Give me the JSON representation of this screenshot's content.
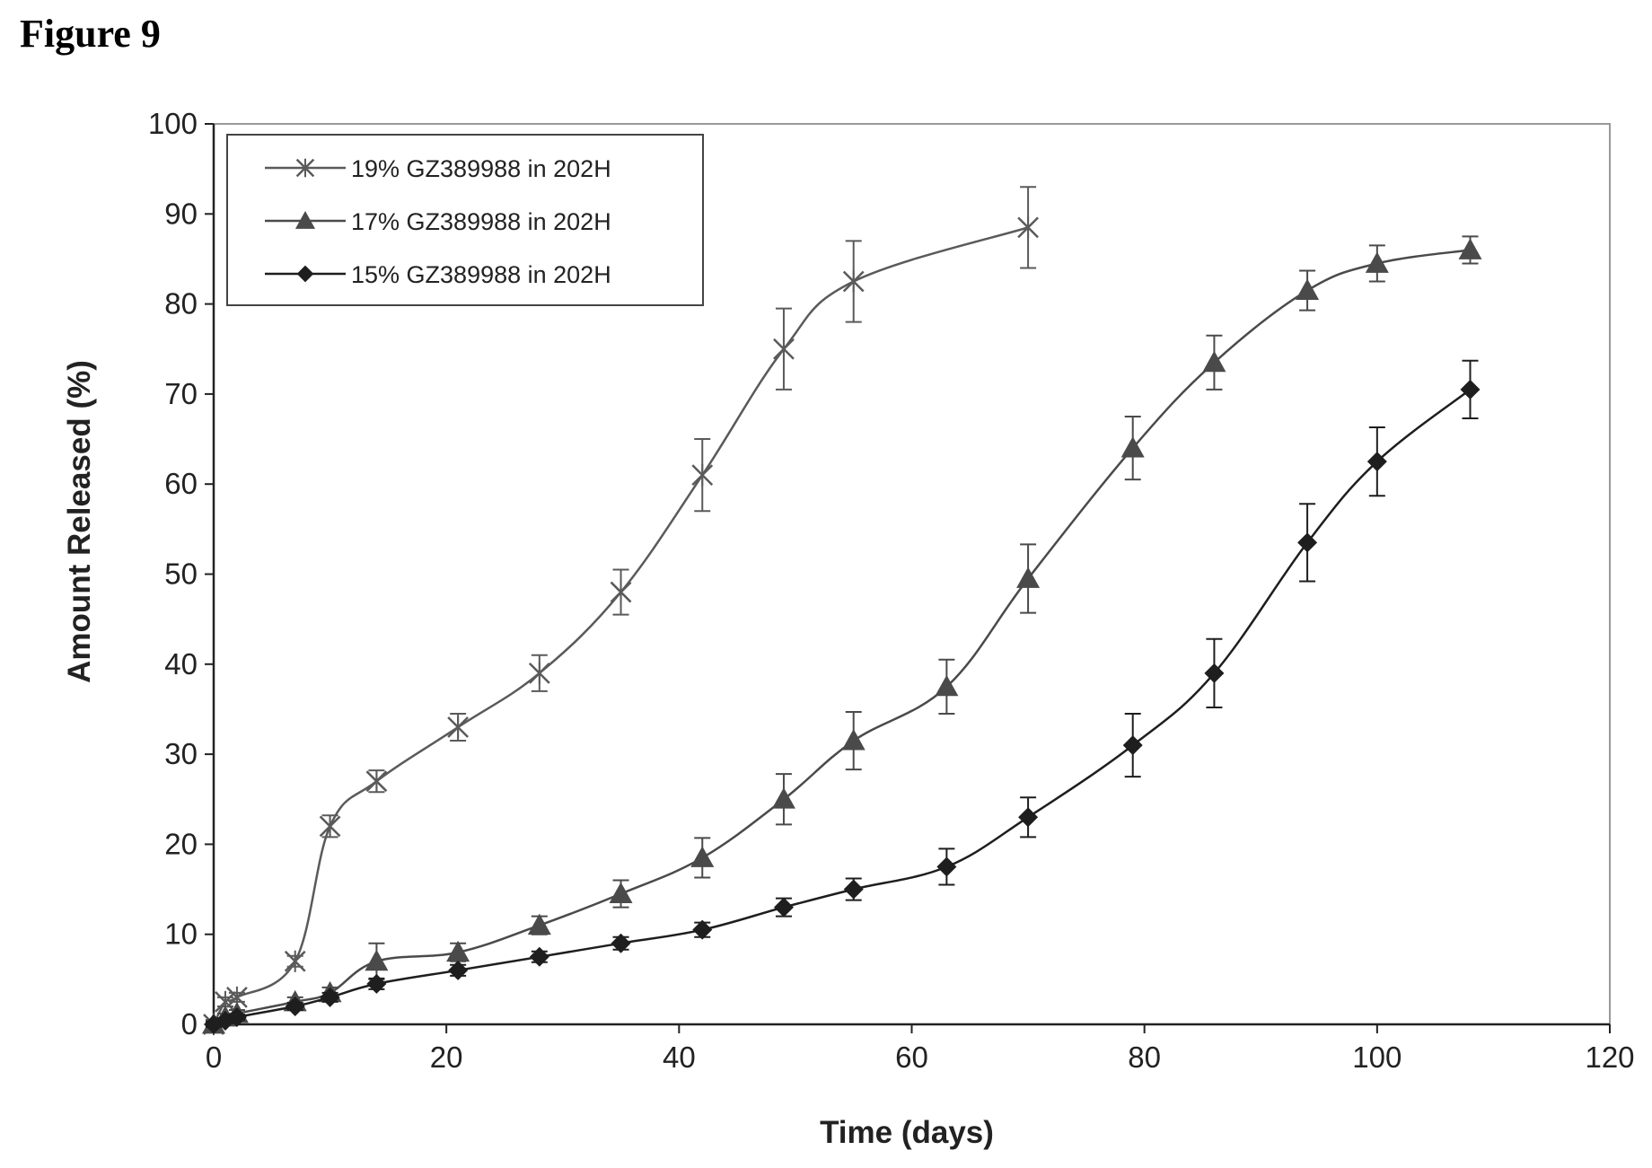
{
  "figure_label": "Figure 9",
  "chart_data": {
    "type": "line",
    "title": "",
    "xlabel": "Time (days)",
    "ylabel": "Amount Released (%)",
    "xlim": [
      0,
      120
    ],
    "ylim": [
      0,
      100
    ],
    "xticks": [
      0,
      20,
      40,
      60,
      80,
      100,
      120
    ],
    "yticks": [
      0,
      10,
      20,
      30,
      40,
      50,
      60,
      70,
      80,
      90,
      100
    ],
    "grid": false,
    "legend_position": "top-left",
    "error_bars": true,
    "series": [
      {
        "name": "19% GZ389988 in 202H",
        "marker": "asterisk",
        "color": "#5a5a5a",
        "points": [
          {
            "x": 0,
            "y": 0,
            "err": 0.5
          },
          {
            "x": 1,
            "y": 2.5,
            "err": 0.5
          },
          {
            "x": 2,
            "y": 3,
            "err": 0.5
          },
          {
            "x": 7,
            "y": 7,
            "err": 0.6
          },
          {
            "x": 10,
            "y": 22,
            "err": 1.2
          },
          {
            "x": 14,
            "y": 27,
            "err": 1.2
          },
          {
            "x": 21,
            "y": 33,
            "err": 1.5
          },
          {
            "x": 28,
            "y": 39,
            "err": 2.0
          },
          {
            "x": 35,
            "y": 48,
            "err": 2.5
          },
          {
            "x": 42,
            "y": 61,
            "err": 4.0
          },
          {
            "x": 49,
            "y": 75,
            "err": 4.5
          },
          {
            "x": 55,
            "y": 82.5,
            "err": 4.5
          },
          {
            "x": 70,
            "y": 88.5,
            "err": 4.5
          }
        ]
      },
      {
        "name": "17% GZ389988 in 202H",
        "marker": "triangle",
        "color": "#4a4a4a",
        "points": [
          {
            "x": 0,
            "y": 0,
            "err": 0.4
          },
          {
            "x": 1,
            "y": 0.8,
            "err": 0.4
          },
          {
            "x": 2,
            "y": 1.2,
            "err": 0.4
          },
          {
            "x": 7,
            "y": 2.5,
            "err": 0.5
          },
          {
            "x": 10,
            "y": 3.5,
            "err": 0.6
          },
          {
            "x": 14,
            "y": 7,
            "err": 2.0
          },
          {
            "x": 21,
            "y": 8,
            "err": 1.0
          },
          {
            "x": 28,
            "y": 11,
            "err": 1.0
          },
          {
            "x": 35,
            "y": 14.5,
            "err": 1.5
          },
          {
            "x": 42,
            "y": 18.5,
            "err": 2.2
          },
          {
            "x": 49,
            "y": 25,
            "err": 2.8
          },
          {
            "x": 55,
            "y": 31.5,
            "err": 3.2
          },
          {
            "x": 63,
            "y": 37.5,
            "err": 3.0
          },
          {
            "x": 70,
            "y": 49.5,
            "err": 3.8
          },
          {
            "x": 79,
            "y": 64,
            "err": 3.5
          },
          {
            "x": 86,
            "y": 73.5,
            "err": 3.0
          },
          {
            "x": 94,
            "y": 81.5,
            "err": 2.2
          },
          {
            "x": 100,
            "y": 84.5,
            "err": 2.0
          },
          {
            "x": 108,
            "y": 86,
            "err": 1.5
          }
        ]
      },
      {
        "name": "15% GZ389988 in 202H",
        "marker": "diamond",
        "color": "#1e1e1e",
        "points": [
          {
            "x": 0,
            "y": 0,
            "err": 0.3
          },
          {
            "x": 1,
            "y": 0.4,
            "err": 0.3
          },
          {
            "x": 2,
            "y": 0.8,
            "err": 0.3
          },
          {
            "x": 7,
            "y": 2,
            "err": 0.4
          },
          {
            "x": 10,
            "y": 3,
            "err": 0.5
          },
          {
            "x": 14,
            "y": 4.5,
            "err": 0.6
          },
          {
            "x": 21,
            "y": 6,
            "err": 0.6
          },
          {
            "x": 28,
            "y": 7.5,
            "err": 0.6
          },
          {
            "x": 35,
            "y": 9,
            "err": 0.7
          },
          {
            "x": 42,
            "y": 10.5,
            "err": 0.8
          },
          {
            "x": 49,
            "y": 13,
            "err": 1.0
          },
          {
            "x": 55,
            "y": 15,
            "err": 1.2
          },
          {
            "x": 63,
            "y": 17.5,
            "err": 2.0
          },
          {
            "x": 70,
            "y": 23,
            "err": 2.2
          },
          {
            "x": 79,
            "y": 31,
            "err": 3.5
          },
          {
            "x": 86,
            "y": 39,
            "err": 3.8
          },
          {
            "x": 94,
            "y": 53.5,
            "err": 4.3
          },
          {
            "x": 100,
            "y": 62.5,
            "err": 3.8
          },
          {
            "x": 108,
            "y": 70.5,
            "err": 3.2
          }
        ]
      }
    ]
  }
}
